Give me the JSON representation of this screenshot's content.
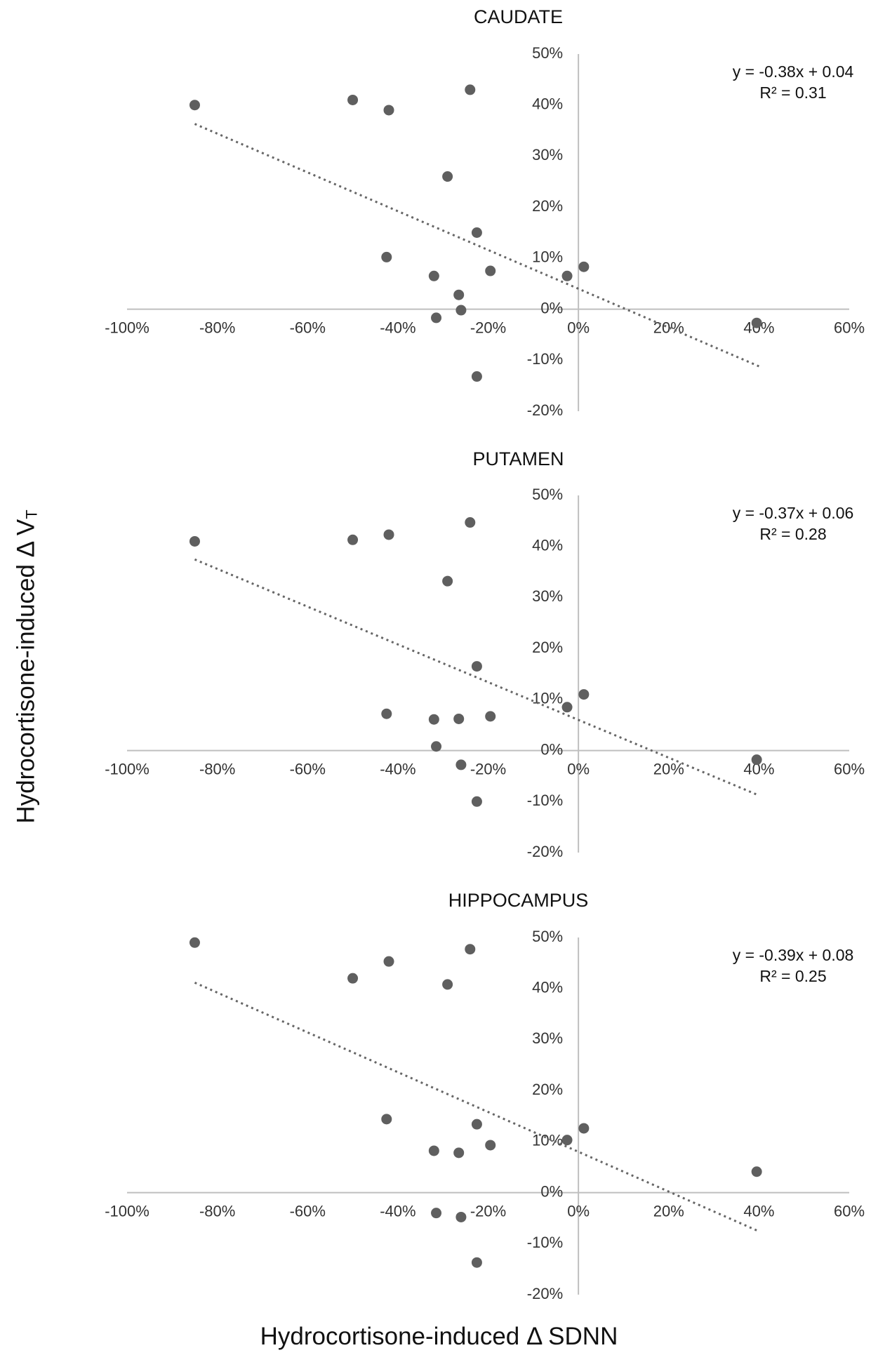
{
  "y_axis_label": "Hydrocortisone-induced Δ V",
  "y_axis_label_sub": "T",
  "x_axis_label": "Hydrocortisone-induced Δ SDNN",
  "chart_data": [
    {
      "type": "scatter",
      "title": "CAUDATE",
      "xlim": [
        -1.0,
        0.6
      ],
      "ylim": [
        -0.2,
        0.5
      ],
      "x_ticks": [
        -1.0,
        -0.8,
        -0.6,
        -0.4,
        -0.2,
        0.0,
        0.2,
        0.4,
        0.6
      ],
      "x_tick_labels": [
        "-100%",
        "-80%",
        "-60%",
        "-40%",
        "-20%",
        "0%",
        "20%",
        "40%",
        "60%"
      ],
      "y_ticks": [
        -0.2,
        -0.1,
        0.0,
        0.1,
        0.2,
        0.3,
        0.4,
        0.5
      ],
      "y_tick_labels": [
        "-20%",
        "-10%",
        "0%",
        "10%",
        "20%",
        "30%",
        "40%",
        "50%"
      ],
      "trendline": {
        "slope": -0.38,
        "intercept": 0.04,
        "x_range": [
          -0.85,
          0.4
        ],
        "style": "dotted"
      },
      "equation": "y = -0.38x + 0.04",
      "r_squared": "R² = 0.31",
      "points": [
        {
          "x": -0.85,
          "y": 0.4
        },
        {
          "x": -0.5,
          "y": 0.41
        },
        {
          "x": -0.42,
          "y": 0.39
        },
        {
          "x": -0.24,
          "y": 0.43
        },
        {
          "x": -0.29,
          "y": 0.26
        },
        {
          "x": -0.225,
          "y": 0.15
        },
        {
          "x": -0.425,
          "y": 0.102
        },
        {
          "x": -0.32,
          "y": 0.065
        },
        {
          "x": -0.195,
          "y": 0.075
        },
        {
          "x": -0.265,
          "y": 0.028
        },
        {
          "x": -0.26,
          "y": -0.002
        },
        {
          "x": -0.315,
          "y": -0.017
        },
        {
          "x": -0.225,
          "y": -0.132
        },
        {
          "x": -0.025,
          "y": 0.065
        },
        {
          "x": 0.012,
          "y": 0.083
        },
        {
          "x": 0.395,
          "y": -0.027
        }
      ]
    },
    {
      "type": "scatter",
      "title": "PUTAMEN",
      "xlim": [
        -1.0,
        0.6
      ],
      "ylim": [
        -0.2,
        0.5
      ],
      "x_ticks": [
        -1.0,
        -0.8,
        -0.6,
        -0.4,
        -0.2,
        0.0,
        0.2,
        0.4,
        0.6
      ],
      "x_tick_labels": [
        "-100%",
        "-80%",
        "-60%",
        "-40%",
        "-20%",
        "0%",
        "20%",
        "40%",
        "60%"
      ],
      "y_ticks": [
        -0.2,
        -0.1,
        0.0,
        0.1,
        0.2,
        0.3,
        0.4,
        0.5
      ],
      "y_tick_labels": [
        "-20%",
        "-10%",
        "0%",
        "10%",
        "20%",
        "30%",
        "40%",
        "50%"
      ],
      "trendline": {
        "slope": -0.37,
        "intercept": 0.06,
        "x_range": [
          -0.85,
          0.4
        ],
        "style": "dotted"
      },
      "equation": "y = -0.37x + 0.06",
      "r_squared": "R² = 0.28",
      "points": [
        {
          "x": -0.85,
          "y": 0.41
        },
        {
          "x": -0.5,
          "y": 0.413
        },
        {
          "x": -0.42,
          "y": 0.423
        },
        {
          "x": -0.24,
          "y": 0.447
        },
        {
          "x": -0.29,
          "y": 0.332
        },
        {
          "x": -0.225,
          "y": 0.165
        },
        {
          "x": -0.425,
          "y": 0.072
        },
        {
          "x": -0.32,
          "y": 0.061
        },
        {
          "x": -0.265,
          "y": 0.062
        },
        {
          "x": -0.195,
          "y": 0.067
        },
        {
          "x": -0.315,
          "y": 0.008
        },
        {
          "x": -0.26,
          "y": -0.028
        },
        {
          "x": -0.225,
          "y": -0.1
        },
        {
          "x": -0.025,
          "y": 0.085
        },
        {
          "x": 0.012,
          "y": 0.11
        },
        {
          "x": 0.395,
          "y": -0.018
        }
      ]
    },
    {
      "type": "scatter",
      "title": "HIPPOCAMPUS",
      "xlim": [
        -1.0,
        0.6
      ],
      "ylim": [
        -0.2,
        0.5
      ],
      "x_ticks": [
        -1.0,
        -0.8,
        -0.6,
        -0.4,
        -0.2,
        0.0,
        0.2,
        0.4,
        0.6
      ],
      "x_tick_labels": [
        "-100%",
        "-80%",
        "-60%",
        "-40%",
        "-20%",
        "0%",
        "20%",
        "40%",
        "60%"
      ],
      "y_ticks": [
        -0.2,
        -0.1,
        0.0,
        0.1,
        0.2,
        0.3,
        0.4,
        0.5
      ],
      "y_tick_labels": [
        "-20%",
        "-10%",
        "0%",
        "10%",
        "20%",
        "30%",
        "40%",
        "50%"
      ],
      "trendline": {
        "slope": -0.39,
        "intercept": 0.08,
        "x_range": [
          -0.85,
          0.4
        ],
        "style": "dotted"
      },
      "equation": "y = -0.39x + 0.08",
      "r_squared": "R² = 0.25",
      "points": [
        {
          "x": -0.85,
          "y": 0.49
        },
        {
          "x": -0.5,
          "y": 0.42
        },
        {
          "x": -0.42,
          "y": 0.453
        },
        {
          "x": -0.24,
          "y": 0.477
        },
        {
          "x": -0.29,
          "y": 0.408
        },
        {
          "x": -0.425,
          "y": 0.144
        },
        {
          "x": -0.225,
          "y": 0.134
        },
        {
          "x": -0.32,
          "y": 0.082
        },
        {
          "x": -0.265,
          "y": 0.078
        },
        {
          "x": -0.195,
          "y": 0.093
        },
        {
          "x": -0.025,
          "y": 0.103
        },
        {
          "x": 0.012,
          "y": 0.126
        },
        {
          "x": 0.395,
          "y": 0.041
        },
        {
          "x": -0.315,
          "y": -0.04
        },
        {
          "x": -0.26,
          "y": -0.048
        },
        {
          "x": -0.225,
          "y": -0.137
        }
      ]
    }
  ]
}
